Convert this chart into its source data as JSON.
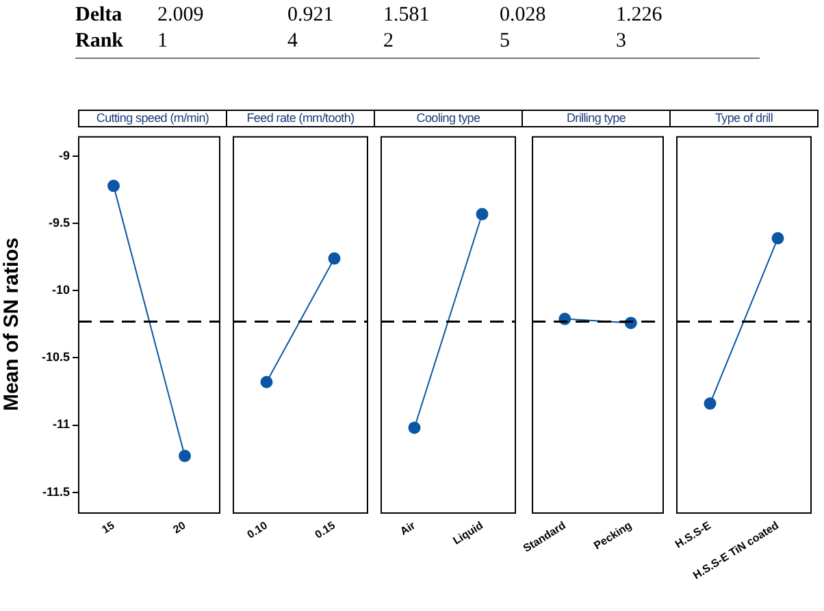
{
  "chart_data": [
    {
      "type": "line",
      "title": "Cutting speed (m/min)",
      "ylabel": "Mean of SN ratios",
      "categories": [
        "15",
        "20"
      ],
      "series": [
        {
          "color": "#0b57a4",
          "values": [
            -9.22,
            -11.23
          ]
        }
      ],
      "ylim": [
        -11.65,
        -8.85
      ],
      "yticks": [
        -9,
        -9.5,
        -10,
        -10.5,
        -11,
        -11.5
      ],
      "ref_lines": [
        {
          "axis": "y",
          "value": -10.23,
          "color": "#000000",
          "line_style": "dashed"
        }
      ],
      "marker": "circle",
      "grid": false,
      "legend": false,
      "annotations": [
        "Delta",
        "2.009",
        "0.921",
        "1.581",
        "0.028",
        "1.226",
        "Rank",
        "1",
        "4",
        "2",
        "5",
        "3"
      ]
    },
    {
      "type": "line",
      "title": "Feed rate (mm/tooth)",
      "categories": [
        "0.10",
        "0.15"
      ],
      "series": [
        {
          "color": "#0b57a4",
          "values": [
            -10.68,
            -9.76
          ]
        }
      ],
      "ylim": [
        -11.65,
        -8.85
      ],
      "yticks": [
        -9,
        -9.5,
        -10,
        -10.5,
        -11,
        -11.5
      ],
      "tick_labels": "x",
      "ref_lines": [
        {
          "axis": "y",
          "value": -10.23,
          "color": "#000000",
          "line_style": "dashed"
        }
      ],
      "marker": "circle",
      "grid": false,
      "legend": false
    },
    {
      "type": "line",
      "title": "Cooling type",
      "categories": [
        "Air",
        "Liquid"
      ],
      "series": [
        {
          "color": "#0b57a4",
          "values": [
            -11.02,
            -9.43
          ]
        }
      ],
      "ylim": [
        -11.65,
        -8.85
      ],
      "yticks": [
        -9,
        -9.5,
        -10,
        -10.5,
        -11,
        -11.5
      ],
      "tick_labels": "x",
      "ref_lines": [
        {
          "axis": "y",
          "value": -10.23,
          "color": "#000000",
          "line_style": "dashed"
        }
      ],
      "marker": "circle",
      "grid": false,
      "legend": false
    },
    {
      "type": "line",
      "title": "Drilling type",
      "categories": [
        "Standard",
        "Pecking"
      ],
      "series": [
        {
          "color": "#0b57a4",
          "values": [
            -10.21,
            -10.24
          ]
        }
      ],
      "ylim": [
        -11.65,
        -8.85
      ],
      "yticks": [
        -9,
        -9.5,
        -10,
        -10.5,
        -11,
        -11.5
      ],
      "tick_labels": "x",
      "ref_lines": [
        {
          "axis": "y",
          "value": -10.23,
          "color": "#000000",
          "line_style": "dashed"
        }
      ],
      "marker": "circle",
      "grid": false,
      "legend": false
    },
    {
      "type": "line",
      "title": "Type of drill",
      "categories": [
        "H.S.S-E",
        "H.S.S-E TiN coated"
      ],
      "series": [
        {
          "color": "#0b57a4",
          "values": [
            -10.84,
            -9.61
          ]
        }
      ],
      "ylim": [
        -11.65,
        -8.85
      ],
      "yticks": [
        -9,
        -9.5,
        -10,
        -10.5,
        -11,
        -11.5
      ],
      "tick_labels": "x",
      "ref_lines": [
        {
          "axis": "y",
          "value": -10.23,
          "color": "#000000",
          "line_style": "dashed"
        }
      ],
      "marker": "circle",
      "grid": false,
      "legend": false
    }
  ]
}
